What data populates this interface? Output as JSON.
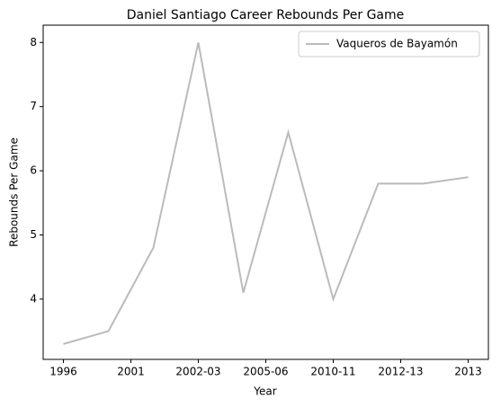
{
  "chart_data": {
    "type": "line",
    "title": "Daniel Santiago Career Rebounds Per Game",
    "x_label": "Year",
    "y_label": "Rebounds Per Game",
    "x": [
      0,
      1,
      2,
      3,
      4,
      5,
      6,
      7,
      8,
      9
    ],
    "series": [
      {
        "name": "Vaqueros de Bayamón",
        "color": "#bbbbbb",
        "values": [
          3.3,
          3.5,
          4.8,
          8.0,
          4.1,
          6.6,
          4.0,
          5.8,
          5.8,
          5.9
        ]
      }
    ],
    "xlim": [
      -0.45,
      9.45
    ],
    "xticks": [
      {
        "value": 0,
        "label": "1996"
      },
      {
        "value": 1.5,
        "label": "2001"
      },
      {
        "value": 3,
        "label": "2002-03"
      },
      {
        "value": 4.5,
        "label": "2005-06"
      },
      {
        "value": 6,
        "label": "2010-11"
      },
      {
        "value": 7.5,
        "label": "2012-13"
      },
      {
        "value": 9,
        "label": "2013"
      }
    ],
    "ylim": [
      3.06,
      8.27
    ],
    "yticks": [
      4,
      5,
      6,
      7,
      8
    ],
    "grid": false,
    "legend": "upper right"
  }
}
